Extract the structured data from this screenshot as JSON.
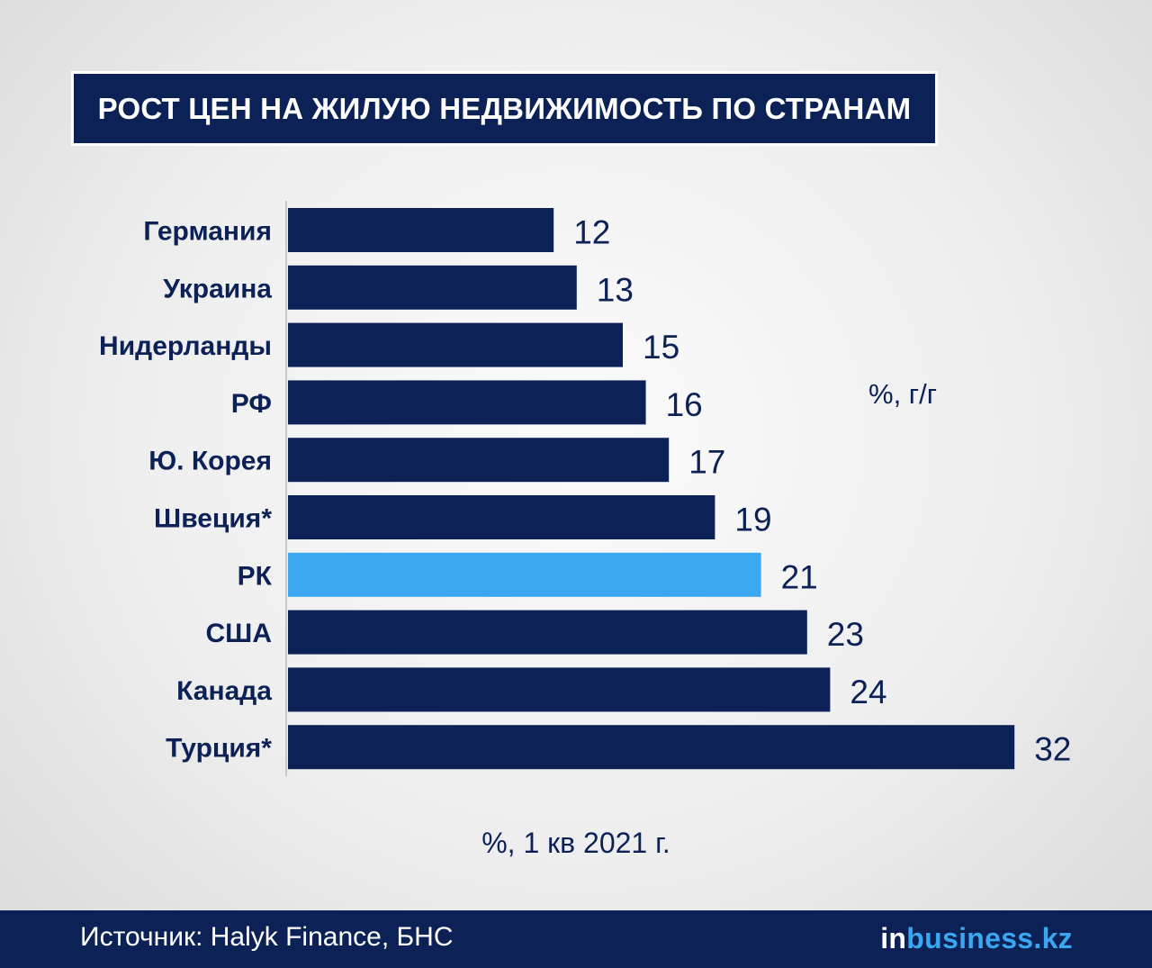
{
  "colors": {
    "bar": "#0c2257",
    "highlight": "#3aa7f0",
    "text": "#0c2257",
    "footer_bg": "#0c2257"
  },
  "chart_data": {
    "type": "bar",
    "orientation": "horizontal",
    "title": "РОСТ ЦЕН НА ЖИЛУЮ НЕДВИЖИМОСТЬ ПО СТРАНАМ",
    "categories": [
      "Германия",
      "Украина",
      "Нидерланды",
      "РФ",
      "Ю. Корея",
      "Швеция*",
      "РК",
      "США",
      "Канада",
      "Турция*"
    ],
    "values": [
      12,
      13,
      15,
      16,
      17,
      19,
      21,
      23,
      24,
      32
    ],
    "highlight_category": "РК",
    "unit_label": "%, г/г",
    "period_label": "%, 1 кв 2021 г.",
    "xlim": [
      0,
      32
    ],
    "grid": false,
    "legend": "none"
  },
  "footer": {
    "source": "Источник: Halyk Finance, БНС",
    "logo_in": "in",
    "logo_rest": "business.kz"
  }
}
